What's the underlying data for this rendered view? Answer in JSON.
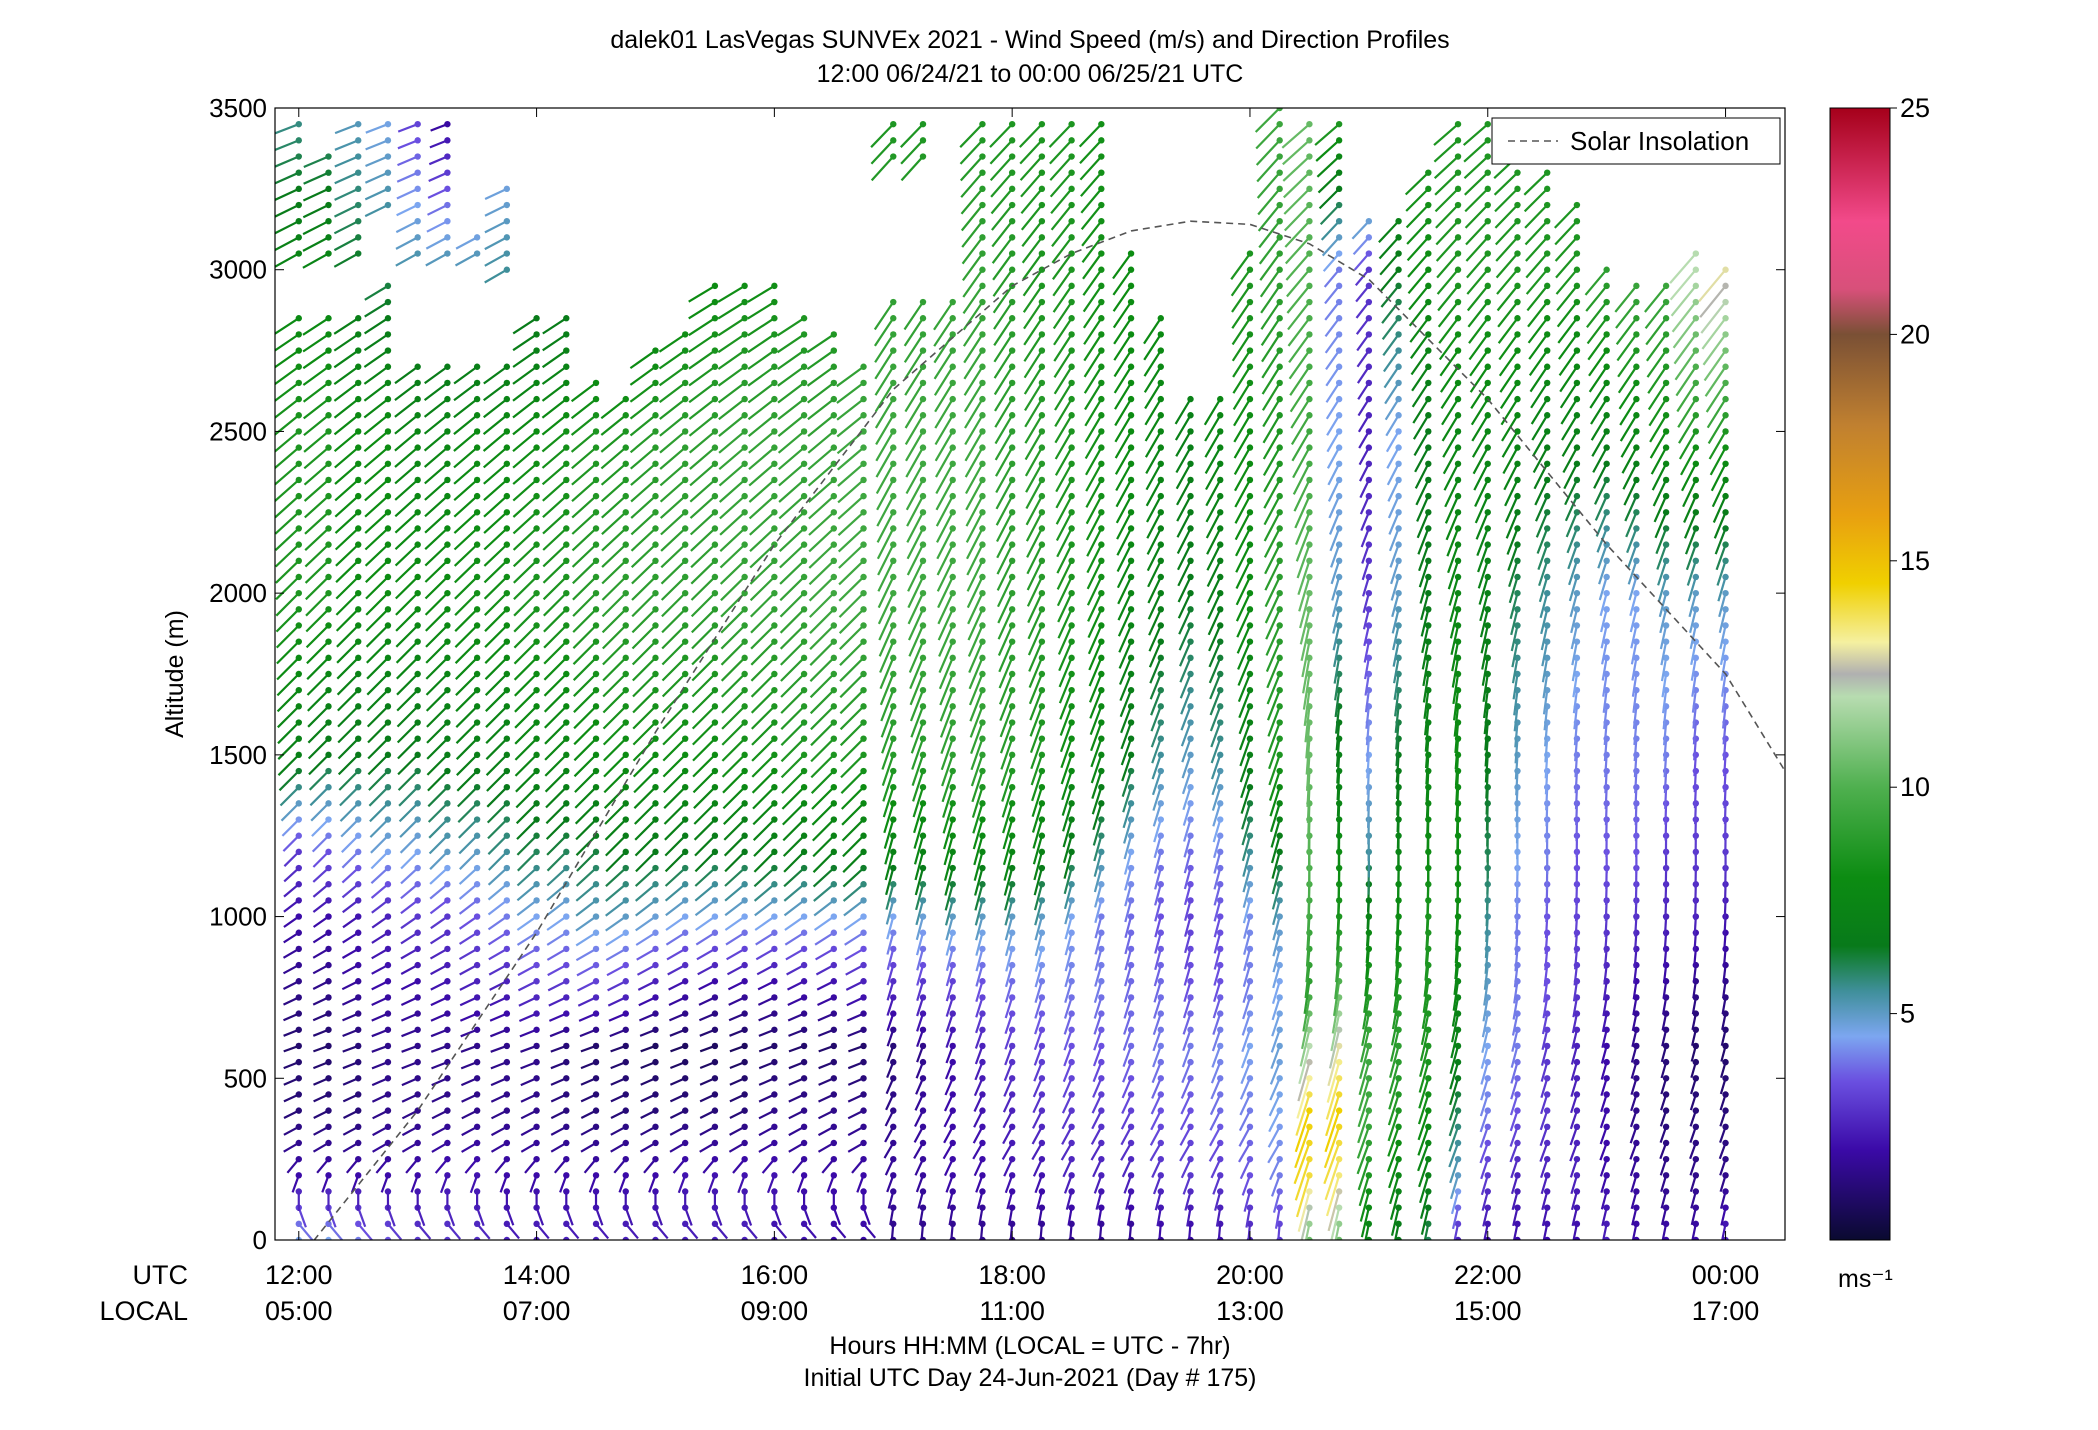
{
  "chart_data": {
    "type": "wind-barb profile",
    "title": "dalek01 LasVegas SUNVEx 2021 - Wind Speed (m/s) and Direction Profiles",
    "subtitle": "12:00 06/24/21 to 00:00 06/25/21  UTC",
    "ylabel": "Altitude (m)",
    "xlabel": "Hours HH:MM  (LOCAL = UTC - 7hr)",
    "xlabel2": "Initial UTC Day 24-Jun-2021 (Day # 175)",
    "row_label_utc": "UTC",
    "row_label_local": "LOCAL",
    "ylim": [
      0,
      3500
    ],
    "yticks": [
      0,
      500,
      1000,
      1500,
      2000,
      2500,
      3000,
      3500
    ],
    "xlim_utc_hours": [
      11.8,
      24.5
    ],
    "xticks": [
      {
        "hour": 12,
        "utc": "12:00",
        "local": "05:00"
      },
      {
        "hour": 14,
        "utc": "14:00",
        "local": "07:00"
      },
      {
        "hour": 16,
        "utc": "16:00",
        "local": "09:00"
      },
      {
        "hour": 18,
        "utc": "18:00",
        "local": "11:00"
      },
      {
        "hour": 20,
        "utc": "20:00",
        "local": "13:00"
      },
      {
        "hour": 22,
        "utc": "22:00",
        "local": "15:00"
      },
      {
        "hour": 24,
        "utc": "00:00",
        "local": "17:00"
      }
    ],
    "legend": {
      "label": "Solar Insolation",
      "placement": "top-right",
      "style": "dashed",
      "color": "#555555"
    },
    "colorbar": {
      "unit": "ms⁻¹",
      "range": [
        0,
        25
      ],
      "ticks": [
        5,
        10,
        15,
        20,
        25
      ],
      "stops": [
        {
          "v": 0,
          "c": "#0a0a30"
        },
        {
          "v": 2,
          "c": "#3b0aa8"
        },
        {
          "v": 3.5,
          "c": "#6a4fe0"
        },
        {
          "v": 4.5,
          "c": "#7ca6f0"
        },
        {
          "v": 5.5,
          "c": "#3f8f9a"
        },
        {
          "v": 6.5,
          "c": "#087a1a"
        },
        {
          "v": 8,
          "c": "#0c8c12"
        },
        {
          "v": 10,
          "c": "#4fb04f"
        },
        {
          "v": 12,
          "c": "#b7dcb0"
        },
        {
          "v": 12.5,
          "c": "#b0b0b0"
        },
        {
          "v": 13.2,
          "c": "#f5f0a0"
        },
        {
          "v": 14.5,
          "c": "#f0d000"
        },
        {
          "v": 16,
          "c": "#e8a010"
        },
        {
          "v": 18,
          "c": "#c08030"
        },
        {
          "v": 20,
          "c": "#7a5035"
        },
        {
          "v": 21,
          "c": "#d8507a"
        },
        {
          "v": 22.5,
          "c": "#f24a8a"
        },
        {
          "v": 25,
          "c": "#a5001a"
        }
      ]
    },
    "solar_insolation_curve": {
      "x_hours": [
        12,
        13,
        14,
        15,
        16,
        17,
        18,
        18.5,
        19,
        19.5,
        20,
        20.5,
        21,
        22,
        23,
        24,
        24.5
      ],
      "altitude_equiv": [
        -60,
        400,
        950,
        1570,
        2150,
        2630,
        2950,
        3050,
        3120,
        3150,
        3140,
        3080,
        2970,
        2600,
        2150,
        1750,
        1450
      ]
    },
    "profile_hours": [
      12,
      12.25,
      12.5,
      12.75,
      13,
      13.25,
      13.5,
      13.75,
      14,
      14.25,
      14.5,
      14.75,
      15,
      15.25,
      15.5,
      15.75,
      16,
      16.25,
      16.5,
      16.75,
      17,
      17.25,
      17.5,
      17.75,
      18,
      18.25,
      18.5,
      18.75,
      19,
      19.25,
      19.5,
      19.75,
      20,
      20.25,
      20.5,
      20.75,
      21,
      21.25,
      21.5,
      21.75,
      22,
      22.25,
      22.5,
      22.75,
      23,
      23.25,
      23.5,
      23.75,
      24
    ],
    "max_altitude_m": [
      3450,
      3350,
      3450,
      3450,
      3450,
      3450,
      3100,
      3250,
      2850,
      2850,
      2680,
      2600,
      2750,
      2800,
      2950,
      2950,
      2950,
      2850,
      2800,
      2700,
      3450,
      3450,
      3150,
      3450,
      3450,
      3450,
      3450,
      3450,
      3050,
      2850,
      2600,
      2600,
      3050,
      3500,
      3450,
      3450,
      3150,
      3150,
      3300,
      3450,
      3450,
      3350,
      3300,
      3200,
      3000,
      2950,
      2950,
      3050,
      3000
    ],
    "data_gaps_m": [
      [
        2870,
        3020
      ],
      [
        2870,
        3020
      ],
      [
        2870,
        3020
      ],
      [
        2950,
        3200
      ],
      [
        2700,
        3020
      ],
      [
        2700,
        3020
      ],
      [
        2700,
        3020
      ],
      [
        2700,
        3000
      ],
      [],
      [],
      [],
      [],
      [],
      [],
      [],
      [],
      [],
      [],
      [],
      [],
      [
        2900,
        3330
      ],
      [
        2900,
        3330
      ],
      [
        2900,
        3180
      ],
      [],
      [],
      [],
      [],
      [],
      [],
      [],
      [],
      [],
      [],
      [],
      [],
      [],
      [],
      [],
      [],
      [],
      [],
      [],
      [],
      [],
      [],
      [],
      [],
      [],
      []
    ],
    "speed_levels_note": "speed (m/s) at altitude breakpoints 0,200,400,600,800,1000,1200,1500,2000,2500,3000,3500",
    "speed_profiles_ms": [
      [
        4.5,
        2.0,
        1.2,
        1.0,
        1.5,
        2.0,
        3.0,
        7.0,
        8.5,
        8.5,
        7.5,
        5.5
      ],
      [
        4.5,
        2.0,
        1.2,
        1.0,
        1.5,
        2.0,
        3.5,
        6.5,
        8.5,
        8.5,
        7.5,
        5.5
      ],
      [
        4.0,
        2.0,
        1.2,
        1.2,
        1.8,
        2.2,
        4.0,
        6.5,
        8.0,
        8.0,
        6.5,
        5.0
      ],
      [
        3.5,
        2.0,
        1.5,
        1.5,
        2.0,
        2.5,
        4.5,
        6.5,
        8.0,
        8.0,
        6.0,
        4.5
      ],
      [
        3.0,
        2.0,
        1.5,
        1.5,
        2.0,
        3.0,
        4.5,
        6.5,
        8.0,
        7.5,
        5.5,
        3.0
      ],
      [
        3.0,
        2.2,
        1.5,
        1.5,
        2.2,
        3.0,
        5.0,
        6.8,
        8.0,
        7.5,
        5.5,
        1.5
      ],
      [
        2.8,
        2.2,
        1.5,
        1.5,
        2.5,
        3.5,
        5.0,
        7.0,
        8.2,
        7.8,
        5.5,
        1.5
      ],
      [
        2.5,
        2.0,
        1.5,
        1.5,
        2.5,
        4.0,
        5.5,
        7.0,
        8.2,
        7.8,
        5.5,
        4.0
      ],
      [
        2.5,
        2.0,
        1.5,
        1.5,
        3.0,
        4.5,
        6.0,
        7.5,
        8.5,
        8.0,
        6.0,
        5.0
      ],
      [
        2.5,
        2.0,
        1.3,
        1.2,
        3.0,
        4.5,
        6.0,
        7.5,
        8.5,
        8.2,
        6.0,
        5.0
      ],
      [
        2.5,
        2.0,
        1.2,
        1.0,
        3.2,
        5.0,
        6.2,
        7.8,
        8.8,
        8.5,
        6.5,
        5.0
      ],
      [
        2.5,
        2.0,
        1.2,
        1.0,
        3.0,
        5.0,
        6.5,
        8.0,
        9.0,
        8.5,
        6.5,
        5.0
      ],
      [
        2.5,
        2.0,
        1.2,
        0.8,
        2.5,
        4.8,
        6.5,
        8.0,
        9.0,
        8.8,
        7.0,
        5.5
      ],
      [
        2.5,
        2.2,
        1.2,
        0.8,
        2.2,
        4.5,
        6.5,
        8.0,
        9.0,
        9.0,
        7.5,
        6.0
      ],
      [
        2.5,
        2.2,
        1.2,
        0.8,
        2.0,
        4.5,
        6.5,
        8.0,
        9.0,
        9.0,
        7.8,
        6.5
      ],
      [
        2.5,
        2.2,
        1.2,
        0.8,
        2.0,
        4.5,
        6.5,
        8.2,
        9.2,
        9.2,
        8.0,
        7.0
      ],
      [
        2.2,
        2.2,
        1.5,
        1.0,
        2.0,
        4.5,
        6.8,
        8.2,
        9.2,
        9.2,
        8.0,
        7.0
      ],
      [
        2.2,
        2.0,
        1.5,
        1.0,
        2.2,
        4.5,
        6.8,
        8.5,
        9.2,
        9.2,
        8.2,
        7.0
      ],
      [
        2.0,
        2.0,
        1.5,
        1.0,
        2.2,
        4.5,
        7.0,
        8.5,
        9.5,
        9.2,
        8.2,
        7.0
      ],
      [
        2.0,
        2.0,
        1.5,
        1.0,
        2.5,
        4.5,
        7.0,
        8.5,
        9.5,
        9.5,
        8.5,
        7.5
      ],
      [
        1.5,
        1.8,
        1.5,
        1.2,
        2.8,
        4.5,
        7.2,
        8.8,
        9.5,
        9.5,
        9.0,
        8.5
      ],
      [
        1.5,
        1.8,
        1.8,
        1.5,
        3.0,
        4.8,
        7.2,
        8.8,
        9.5,
        9.5,
        9.0,
        8.5
      ],
      [
        1.5,
        2.0,
        2.0,
        2.0,
        3.2,
        5.0,
        7.5,
        9.0,
        9.5,
        9.5,
        9.2,
        8.5
      ],
      [
        1.5,
        2.0,
        2.2,
        2.5,
        3.5,
        5.0,
        7.5,
        9.0,
        9.5,
        9.5,
        9.2,
        8.5
      ],
      [
        1.5,
        2.2,
        2.5,
        3.0,
        3.8,
        5.0,
        7.5,
        8.8,
        9.0,
        9.0,
        8.8,
        8.5
      ],
      [
        1.5,
        2.2,
        2.8,
        3.2,
        4.0,
        5.0,
        7.2,
        8.5,
        8.8,
        8.8,
        8.5,
        8.5
      ],
      [
        1.5,
        2.5,
        3.0,
        3.5,
        4.0,
        4.5,
        6.5,
        8.0,
        8.5,
        8.5,
        8.5,
        8.5
      ],
      [
        1.5,
        2.5,
        3.0,
        3.5,
        4.0,
        4.0,
        5.5,
        7.5,
        8.2,
        8.2,
        8.2,
        8.2
      ],
      [
        1.5,
        2.5,
        3.2,
        3.8,
        3.8,
        3.8,
        4.5,
        6.5,
        7.5,
        8.0,
        8.0,
        8.0
      ],
      [
        1.8,
        2.8,
        3.5,
        4.0,
        3.8,
        3.5,
        4.0,
        5.5,
        7.0,
        7.5,
        8.0,
        8.0
      ],
      [
        1.8,
        3.0,
        3.5,
        4.0,
        3.5,
        3.2,
        3.8,
        5.0,
        6.5,
        7.0,
        7.5,
        8.0
      ],
      [
        2.0,
        3.0,
        3.8,
        4.2,
        3.5,
        3.5,
        4.0,
        5.5,
        6.8,
        7.5,
        8.0,
        8.0
      ],
      [
        2.5,
        3.5,
        4.0,
        4.5,
        4.0,
        4.2,
        5.5,
        7.0,
        8.0,
        8.0,
        8.5,
        8.5
      ],
      [
        3.0,
        4.0,
        4.5,
        4.8,
        4.5,
        5.0,
        6.5,
        8.5,
        9.0,
        8.5,
        9.0,
        9.5
      ],
      [
        10.5,
        14.0,
        14.5,
        12.0,
        9.0,
        9.5,
        10.0,
        10.5,
        10.5,
        9.5,
        10.0,
        10.5
      ],
      [
        10.5,
        13.5,
        14.5,
        13.0,
        10.0,
        8.5,
        8.0,
        7.0,
        5.0,
        4.5,
        4.0,
        9.0
      ],
      [
        7.0,
        8.5,
        9.5,
        9.5,
        8.5,
        7.5,
        5.5,
        4.5,
        3.0,
        2.5,
        3.0,
        9.0
      ],
      [
        6.5,
        7.5,
        8.5,
        9.0,
        8.5,
        8.0,
        7.5,
        6.5,
        5.0,
        4.5,
        6.5,
        8.5
      ],
      [
        6.0,
        7.0,
        8.0,
        8.5,
        8.5,
        8.5,
        8.0,
        7.5,
        6.5,
        6.5,
        8.0,
        8.5
      ],
      [
        2.5,
        5.0,
        6.0,
        7.0,
        7.5,
        8.0,
        8.0,
        8.0,
        7.5,
        7.5,
        8.5,
        8.5
      ],
      [
        2.0,
        3.0,
        4.0,
        4.5,
        5.0,
        5.5,
        6.0,
        6.5,
        7.0,
        7.5,
        8.5,
        8.5
      ],
      [
        2.0,
        2.5,
        3.5,
        4.0,
        4.0,
        4.0,
        4.5,
        5.0,
        6.0,
        7.5,
        8.5,
        8.5
      ],
      [
        2.0,
        2.5,
        3.0,
        3.0,
        3.5,
        3.5,
        4.0,
        4.5,
        5.5,
        7.0,
        8.5,
        8.5
      ],
      [
        2.0,
        2.5,
        2.5,
        2.5,
        3.0,
        3.2,
        3.5,
        4.0,
        5.0,
        7.0,
        8.5,
        8.5
      ],
      [
        2.5,
        2.0,
        2.0,
        2.0,
        2.5,
        3.0,
        3.5,
        4.0,
        4.5,
        7.0,
        9.0,
        9.0
      ],
      [
        2.0,
        1.8,
        1.5,
        1.5,
        2.0,
        2.8,
        3.5,
        4.0,
        4.5,
        7.5,
        9.5,
        9.5
      ],
      [
        2.0,
        1.5,
        1.2,
        1.2,
        1.8,
        2.5,
        3.0,
        4.0,
        5.0,
        8.0,
        9.5,
        9.5
      ],
      [
        2.0,
        1.5,
        1.2,
        1.0,
        1.5,
        2.5,
        3.0,
        3.5,
        5.0,
        8.5,
        12.0,
        12.0
      ],
      [
        2.5,
        1.5,
        1.2,
        1.0,
        1.5,
        2.2,
        3.0,
        3.5,
        5.0,
        8.5,
        13.0,
        13.0
      ]
    ],
    "direction_profiles_deg": {
      "note": "meteorological direction wind is from, at altitude breakpoints 0,300,600,900,1200,1600,2000,2500,3000,3500",
      "morning_12_to_17": [
        120,
        240,
        250,
        240,
        225,
        225,
        225,
        230,
        240,
        250
      ],
      "midday_17_to_20_5": [
        180,
        210,
        200,
        195,
        195,
        200,
        205,
        210,
        215,
        225
      ],
      "afternoon_20_5_to_24": [
        190,
        200,
        195,
        185,
        180,
        185,
        195,
        210,
        220,
        230
      ]
    }
  }
}
